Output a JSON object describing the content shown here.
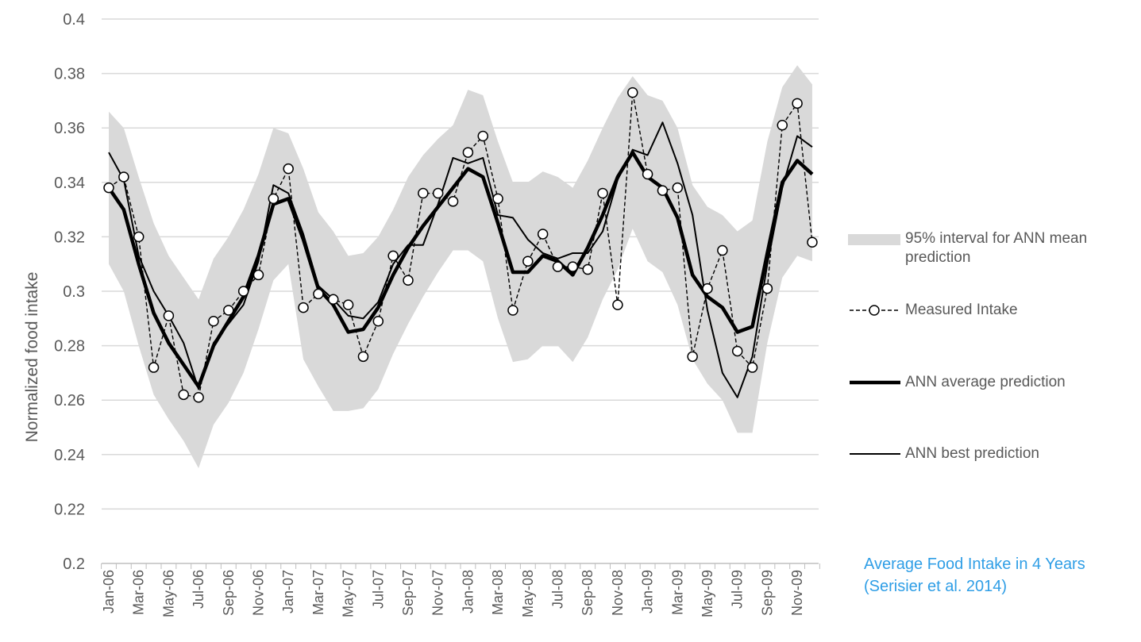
{
  "chart_data": {
    "type": "line",
    "ylabel": "Normalized food intake",
    "xlabel": "",
    "ylim": [
      0.2,
      0.4
    ],
    "yticks": [
      0.2,
      0.22,
      0.24,
      0.26,
      0.28,
      0.3,
      0.32,
      0.34,
      0.36,
      0.38,
      0.4
    ],
    "ytick_labels": [
      "0.2",
      "0.22",
      "0.24",
      "0.26",
      "0.28",
      "0.3",
      "0.32",
      "0.34",
      "0.36",
      "0.38",
      "0.4"
    ],
    "grid": true,
    "months": [
      "Jan-06",
      "Feb-06",
      "Mar-06",
      "Apr-06",
      "May-06",
      "Jun-06",
      "Jul-06",
      "Aug-06",
      "Sep-06",
      "Oct-06",
      "Nov-06",
      "Dec-06",
      "Jan-07",
      "Feb-07",
      "Mar-07",
      "Apr-07",
      "May-07",
      "Jun-07",
      "Jul-07",
      "Aug-07",
      "Sep-07",
      "Oct-07",
      "Nov-07",
      "Dec-07",
      "Jan-08",
      "Feb-08",
      "Mar-08",
      "Apr-08",
      "May-08",
      "Jun-08",
      "Jul-08",
      "Aug-08",
      "Sep-08",
      "Oct-08",
      "Nov-08",
      "Dec-08",
      "Jan-09",
      "Feb-09",
      "Mar-09",
      "Apr-09",
      "May-09",
      "Jun-09",
      "Jul-09",
      "Aug-09",
      "Sep-09",
      "Oct-09",
      "Nov-09",
      "Dec-09"
    ],
    "tick_labels": [
      "Jan-06",
      "Mar-06",
      "May-06",
      "Jul-06",
      "Sep-06",
      "Nov-06",
      "Jan-07",
      "Mar-07",
      "May-07",
      "Jul-07",
      "Sep-07",
      "Nov-07",
      "Jan-08",
      "Mar-08",
      "May-08",
      "Jul-08",
      "Sep-08",
      "Nov-08",
      "Jan-09",
      "Mar-09",
      "May-09",
      "Jul-09",
      "Sep-09",
      "Nov-09"
    ],
    "interval": {
      "name": "95% interval for ANN mean prediction",
      "upper": [
        0.366,
        0.36,
        0.342,
        0.325,
        0.313,
        0.305,
        0.297,
        0.312,
        0.32,
        0.33,
        0.343,
        0.36,
        0.358,
        0.345,
        0.329,
        0.322,
        0.313,
        0.314,
        0.32,
        0.33,
        0.342,
        0.35,
        0.356,
        0.361,
        0.374,
        0.372,
        0.355,
        0.34,
        0.34,
        0.344,
        0.342,
        0.338,
        0.348,
        0.36,
        0.371,
        0.379,
        0.372,
        0.37,
        0.36,
        0.339,
        0.331,
        0.328,
        0.322,
        0.326,
        0.355,
        0.375,
        0.383,
        0.376
      ],
      "lower": [
        0.31,
        0.3,
        0.28,
        0.262,
        0.253,
        0.245,
        0.235,
        0.251,
        0.259,
        0.27,
        0.286,
        0.304,
        0.31,
        0.275,
        0.265,
        0.256,
        0.256,
        0.257,
        0.264,
        0.277,
        0.288,
        0.298,
        0.307,
        0.315,
        0.315,
        0.311,
        0.29,
        0.274,
        0.275,
        0.28,
        0.28,
        0.274,
        0.283,
        0.297,
        0.308,
        0.323,
        0.311,
        0.307,
        0.295,
        0.275,
        0.266,
        0.26,
        0.248,
        0.248,
        0.281,
        0.305,
        0.313,
        0.311
      ]
    },
    "series": [
      {
        "name": "Measured Intake",
        "style": "dashed-circle",
        "values": [
          0.338,
          0.342,
          0.32,
          0.272,
          0.291,
          0.262,
          0.261,
          0.289,
          0.293,
          0.3,
          0.306,
          0.334,
          0.345,
          0.294,
          0.299,
          0.297,
          0.295,
          0.276,
          0.289,
          0.313,
          0.304,
          0.336,
          0.336,
          0.333,
          0.351,
          0.357,
          0.334,
          0.293,
          0.311,
          0.321,
          0.309,
          0.309,
          0.308,
          0.336,
          0.295,
          0.373,
          0.343,
          0.337,
          0.338,
          0.276,
          0.301,
          0.315,
          0.278,
          0.272,
          0.301,
          0.361,
          0.369,
          0.318
        ]
      },
      {
        "name": "ANN average prediction",
        "style": "thick",
        "values": [
          0.338,
          0.33,
          0.31,
          0.292,
          0.281,
          0.273,
          0.265,
          0.28,
          0.289,
          0.298,
          0.313,
          0.332,
          0.334,
          0.319,
          0.301,
          0.295,
          0.285,
          0.286,
          0.294,
          0.306,
          0.316,
          0.324,
          0.331,
          0.338,
          0.345,
          0.342,
          0.325,
          0.307,
          0.307,
          0.313,
          0.311,
          0.306,
          0.316,
          0.328,
          0.342,
          0.351,
          0.342,
          0.338,
          0.327,
          0.306,
          0.298,
          0.294,
          0.285,
          0.287,
          0.314,
          0.34,
          0.348,
          0.343
        ]
      },
      {
        "name": "ANN best prediction",
        "style": "thin",
        "values": [
          0.351,
          0.341,
          0.313,
          0.3,
          0.291,
          0.281,
          0.264,
          0.281,
          0.288,
          0.295,
          0.311,
          0.339,
          0.336,
          0.321,
          0.302,
          0.297,
          0.291,
          0.29,
          0.296,
          0.31,
          0.317,
          0.317,
          0.332,
          0.349,
          0.347,
          0.349,
          0.328,
          0.327,
          0.319,
          0.314,
          0.312,
          0.314,
          0.314,
          0.322,
          0.341,
          0.352,
          0.35,
          0.362,
          0.347,
          0.328,
          0.293,
          0.27,
          0.261,
          0.276,
          0.31,
          0.338,
          0.357,
          0.353
        ]
      }
    ]
  },
  "legend": {
    "interval_label": "95% interval for ANN mean prediction",
    "measured_label": "Measured Intake",
    "average_label": "ANN average prediction",
    "best_label": "ANN best prediction"
  },
  "caption": {
    "line1": "Average Food Intake in 4 Years",
    "line2": "(Serisier et al. 2014)"
  },
  "colors": {
    "band": "#d9d9d9",
    "grid": "#d9d9d9",
    "text": "#595959",
    "caption": "#2f9ee6",
    "line": "#000000"
  }
}
